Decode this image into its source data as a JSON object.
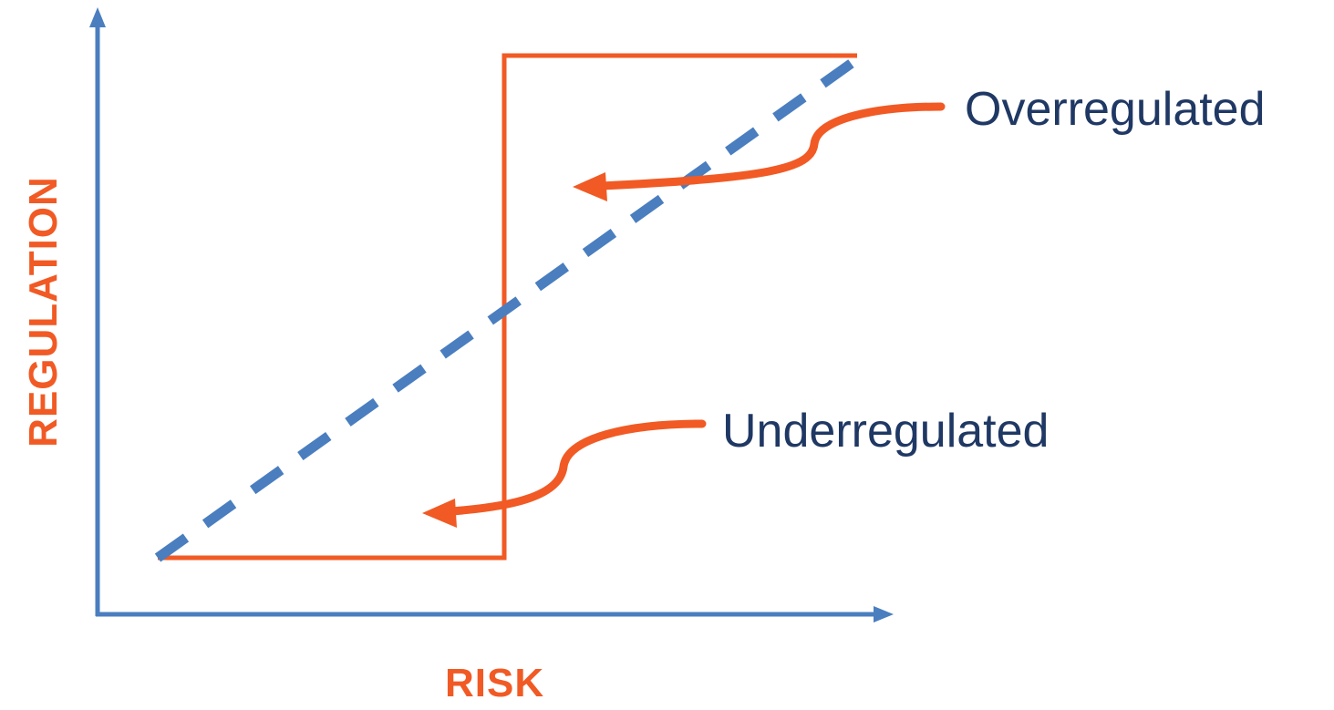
{
  "colors": {
    "axis": "#4a7ebf",
    "accent": "#f15a24",
    "label": "#1f3864"
  },
  "axes": {
    "x_label": "RISK",
    "y_label": "REGULATION"
  },
  "callouts": {
    "overregulated": "Overregulated",
    "underregulated": "Underregulated"
  },
  "lines": {
    "dashed_line": "proportional",
    "solid_line": "step"
  }
}
